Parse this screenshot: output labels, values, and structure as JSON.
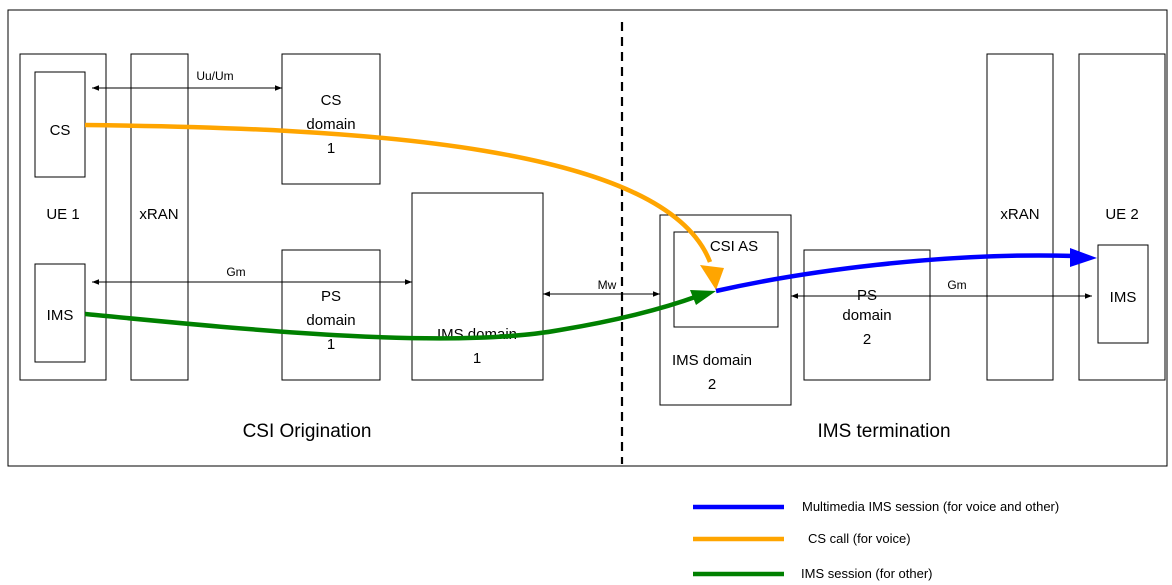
{
  "labels": {
    "ue1": "UE 1",
    "cs": "CS",
    "ims_ue1": "IMS",
    "xran_left": "xRAN",
    "cs_domain_1": [
      "CS",
      "domain",
      "1"
    ],
    "ps_domain_1": [
      "PS",
      "domain",
      "1"
    ],
    "ims_domain_1": [
      "IMS domain",
      "1"
    ],
    "csi_as": "CSI AS",
    "ims_domain_2": [
      "IMS domain",
      "2"
    ],
    "ps_domain_2": [
      "PS",
      "domain",
      "2"
    ],
    "xran_right": "xRAN",
    "ue2": "UE 2",
    "ims_ue2": "IMS",
    "csi_origination": "CSI Origination",
    "ims_termination": "IMS termination"
  },
  "interfaces": {
    "uu_um": "Uu/Um",
    "gm_left": "Gm",
    "mw": "Mw",
    "gm_right": "Gm"
  },
  "legend": [
    {
      "label": "Multimedia IMS session (for voice and other)",
      "color": "#0000ff"
    },
    {
      "label": "CS call (for voice)",
      "color": "#ffa500"
    },
    {
      "label": "IMS session (for other)",
      "color": "#008000"
    }
  ],
  "colors": {
    "ims_multimedia": "#0000ff",
    "cs_call": "#ffa500",
    "ims_session": "#008000"
  }
}
